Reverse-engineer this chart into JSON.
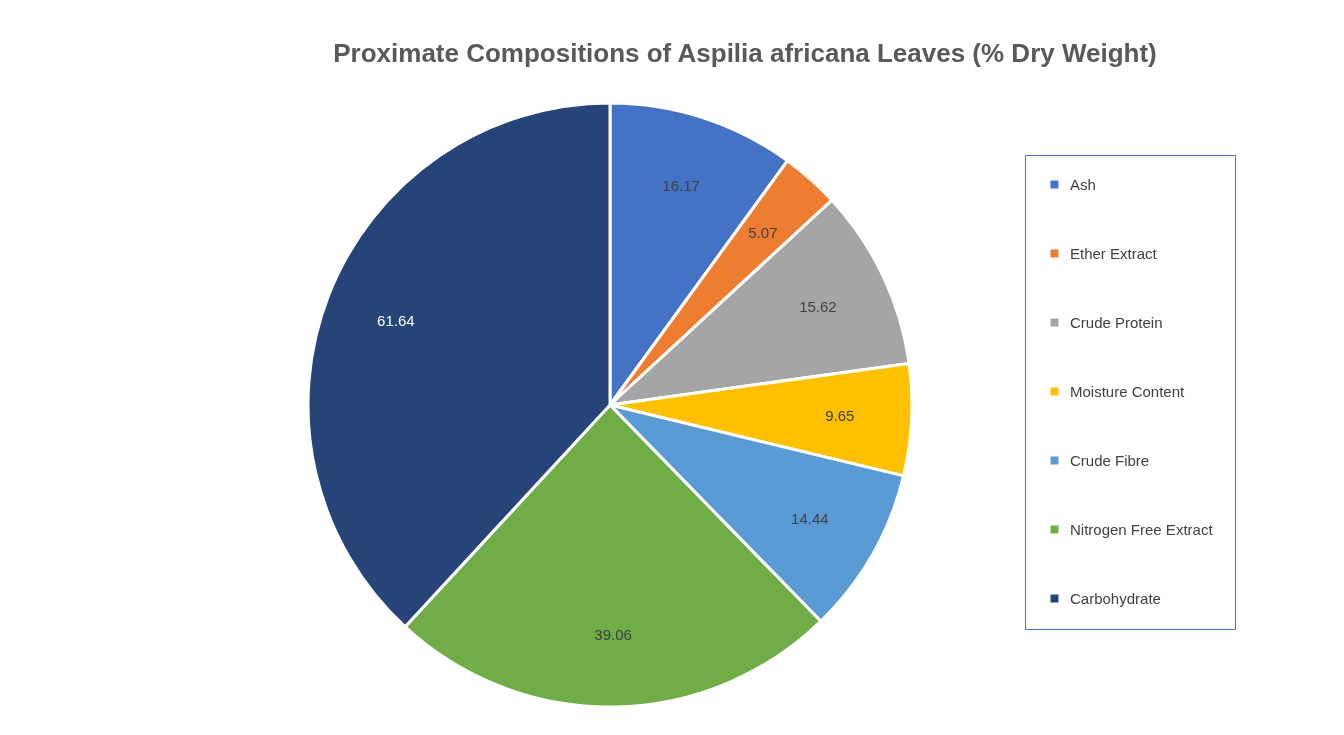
{
  "chart_data": {
    "type": "pie",
    "title": "Proximate Compositions of Aspilia africana Leaves (% Dry Weight)",
    "categories": [
      "Ash",
      "Ether Extract",
      "Crude Protein",
      "Moisture Content",
      "Crude Fibre",
      "Nitrogen Free Extract",
      "Carbohydrate"
    ],
    "values": [
      16.17,
      5.07,
      15.62,
      9.65,
      14.44,
      39.06,
      61.64
    ],
    "colors": [
      "#4472c4",
      "#ed7d31",
      "#a5a5a5",
      "#ffc000",
      "#5b9bd5",
      "#70ad47",
      "#264478"
    ],
    "data_labels": true,
    "legend": "right"
  }
}
